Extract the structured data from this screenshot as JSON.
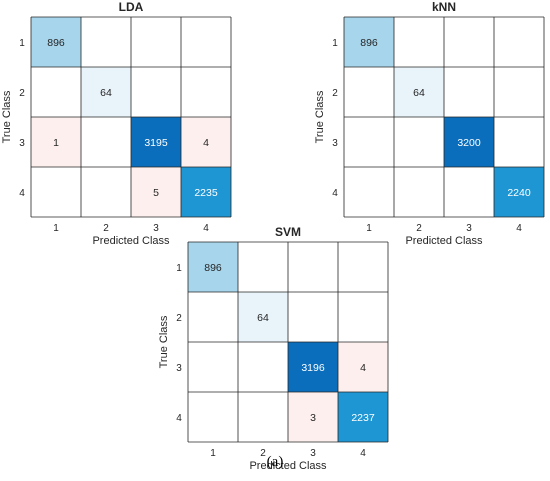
{
  "chart_data": [
    {
      "type": "heatmap",
      "title": "LDA",
      "xlabel": "Predicted Class",
      "ylabel": "True Class",
      "x_categories": [
        "1",
        "2",
        "3",
        "4"
      ],
      "y_categories": [
        "1",
        "2",
        "3",
        "4"
      ],
      "matrix": [
        [
          896,
          null,
          null,
          null
        ],
        [
          null,
          64,
          null,
          null
        ],
        [
          1,
          null,
          3195,
          4
        ],
        [
          null,
          null,
          5,
          2235
        ]
      ]
    },
    {
      "type": "heatmap",
      "title": "kNN",
      "xlabel": "Predicted Class",
      "ylabel": "True Class",
      "x_categories": [
        "1",
        "2",
        "3",
        "4"
      ],
      "y_categories": [
        "1",
        "2",
        "3",
        "4"
      ],
      "matrix": [
        [
          896,
          null,
          null,
          null
        ],
        [
          null,
          64,
          null,
          null
        ],
        [
          null,
          null,
          3200,
          null
        ],
        [
          null,
          null,
          null,
          2240
        ]
      ]
    },
    {
      "type": "heatmap",
      "title": "SVM",
      "xlabel": "Predicted Class",
      "ylabel": "True Class",
      "x_categories": [
        "1",
        "2",
        "3",
        "4"
      ],
      "y_categories": [
        "1",
        "2",
        "3",
        "4"
      ],
      "matrix": [
        [
          896,
          null,
          null,
          null
        ],
        [
          null,
          64,
          null,
          null
        ],
        [
          null,
          null,
          3196,
          4
        ],
        [
          null,
          null,
          3,
          2237
        ]
      ]
    }
  ],
  "colors": {
    "diag_max": "#0a6ebd",
    "diag_high": "#1e96d4",
    "diag_mid": "#a7d5ec",
    "diag_low": "#e8f3fa",
    "offdiag": "#fcefed",
    "grid": "#262626",
    "text_dark": "#262626",
    "text_light": "#ffffff"
  },
  "caption": "(a)"
}
